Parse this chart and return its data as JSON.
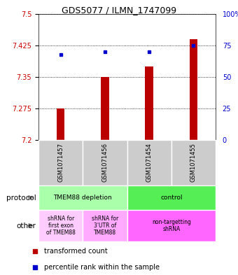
{
  "title": "GDS5077 / ILMN_1747099",
  "samples": [
    "GSM1071457",
    "GSM1071456",
    "GSM1071454",
    "GSM1071455"
  ],
  "bar_values": [
    7.275,
    7.35,
    7.375,
    7.44
  ],
  "bar_base": 7.2,
  "percentile_values": [
    68,
    70,
    70,
    75
  ],
  "ylim": [
    7.2,
    7.5
  ],
  "yticks": [
    7.2,
    7.275,
    7.35,
    7.425,
    7.5
  ],
  "ytick_labels": [
    "7.2",
    "7.275",
    "7.35",
    "7.425",
    "7.5"
  ],
  "y2lim": [
    0,
    100
  ],
  "y2ticks": [
    0,
    25,
    50,
    75,
    100
  ],
  "y2tick_labels": [
    "0",
    "25",
    "50",
    "75",
    "100%"
  ],
  "bar_color": "#bb0000",
  "dot_color": "#0000cc",
  "legend_red_label": "transformed count",
  "legend_blue_label": "percentile rank within the sample",
  "sample_box_color": "#cccccc",
  "prot_left_color": "#aaffaa",
  "prot_right_color": "#55ee55",
  "other_left1_color": "#ffccff",
  "other_left2_color": "#ffaaff",
  "other_right_color": "#ff66ff",
  "prot_left_label": "TMEM88 depletion",
  "prot_right_label": "control",
  "other_left1_label": "shRNA for\nfirst exon\nof TMEM88",
  "other_left2_label": "shRNA for\n3'UTR of\nTMEM88",
  "other_right_label": "non-targetting\nshRNA",
  "left_protocol_label": "protocol",
  "left_other_label": "other"
}
